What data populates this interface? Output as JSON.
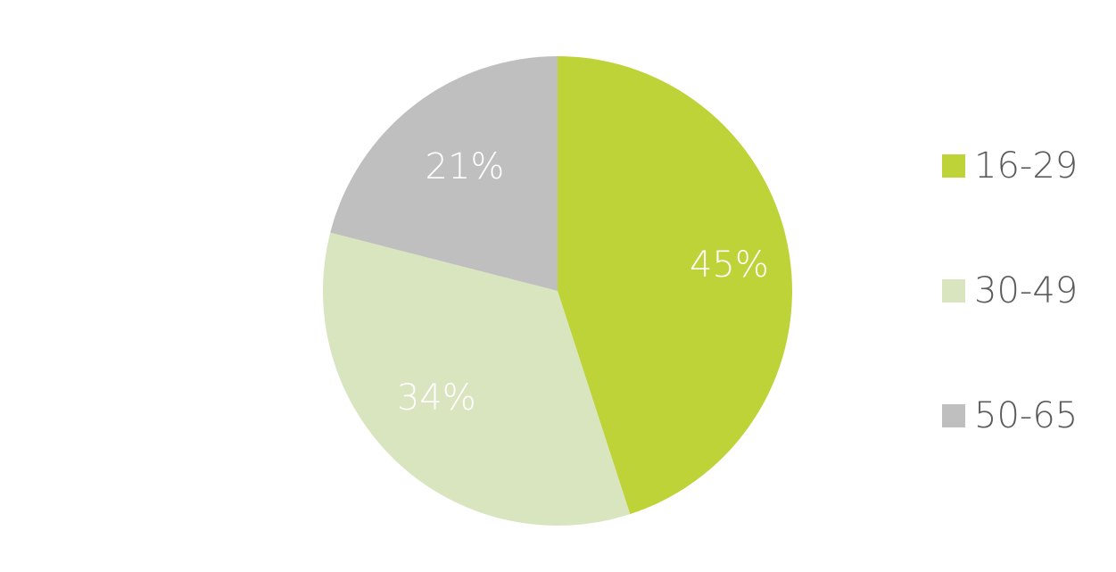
{
  "chart_data": {
    "type": "pie",
    "categories": [
      "16-29",
      "30-49",
      "50-65"
    ],
    "values": [
      45,
      34,
      21
    ],
    "labels": [
      "45%",
      "34%",
      "21%"
    ],
    "colors": [
      "#bed337",
      "#d8e5bf",
      "#bfbfbf"
    ],
    "legend_position": "right"
  }
}
